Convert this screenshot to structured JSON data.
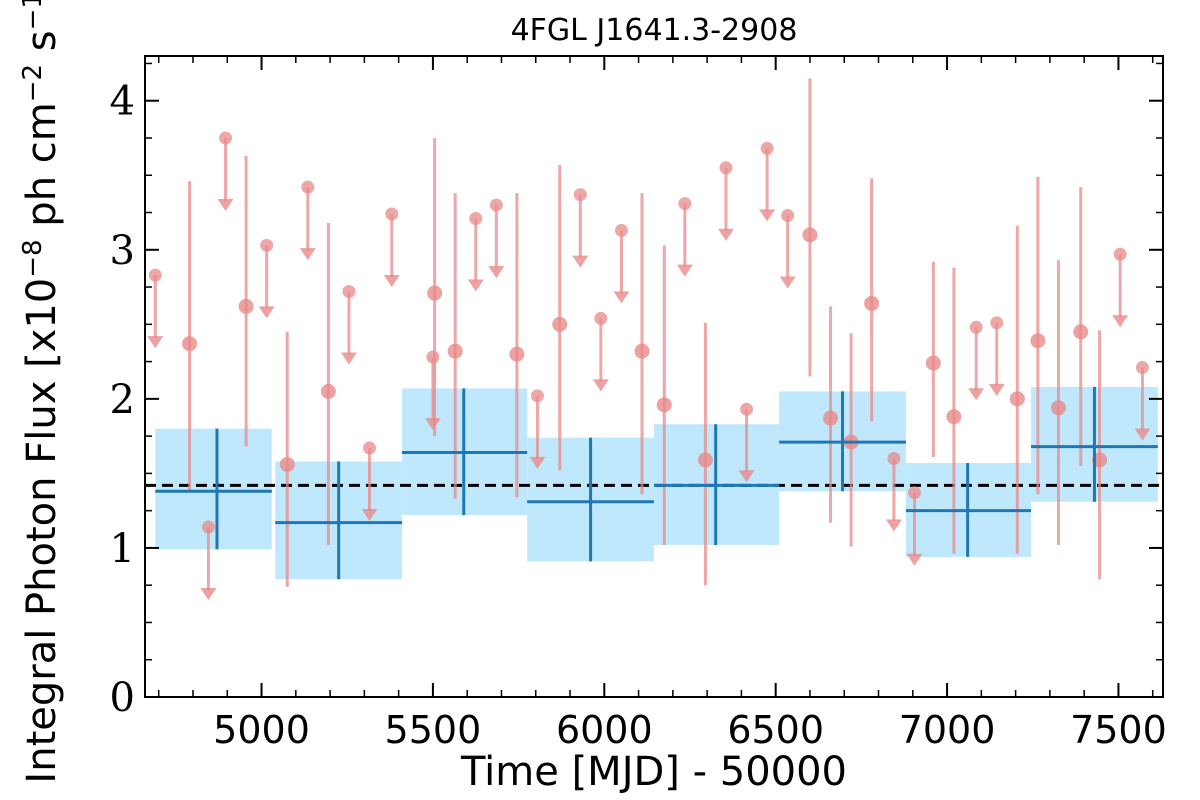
{
  "chart_data": {
    "type": "scatter",
    "title": "4FGL J1641.3-2908",
    "xlabel": "Time [MJD] - 50000",
    "ylabel": "Integral Photon Flux [x10",
    "ylabel_exp1": "−8",
    "ylabel_mid": " ph cm",
    "ylabel_exp2": "−2",
    "ylabel_mid2": " s",
    "ylabel_exp3": "−1",
    "ylabel_end": "]",
    "xlim": [
      4660,
      7630
    ],
    "ylim": [
      0,
      4.3
    ],
    "x_ticks": [
      5000,
      5500,
      6000,
      6500,
      7000,
      7500
    ],
    "y_ticks": [
      0,
      1,
      2,
      3,
      4
    ],
    "x_tick_labels": [
      "5000",
      "5500",
      "6000",
      "6500",
      "7000",
      "7500"
    ],
    "y_tick_labels": [
      "0",
      "1",
      "2",
      "3",
      "4"
    ],
    "mean_flux": 1.42,
    "colors": {
      "points": "#e88a8a",
      "bins_fill": "#bfe8fc",
      "bins_line": "#1f77b4",
      "mean_line": "#000000"
    },
    "series": [
      {
        "role": "short-bin detections",
        "points": [
          {
            "x": 4790,
            "y": 2.37,
            "lo": 1.38,
            "hi": 3.46
          },
          {
            "x": 4955,
            "y": 2.62,
            "lo": 1.68,
            "hi": 3.63
          },
          {
            "x": 5075,
            "y": 1.56,
            "lo": 0.74,
            "hi": 2.45
          },
          {
            "x": 5195,
            "y": 2.05,
            "lo": 1.02,
            "hi": 3.18
          },
          {
            "x": 5505,
            "y": 2.71,
            "lo": 1.75,
            "hi": 3.75
          },
          {
            "x": 5565,
            "y": 2.32,
            "lo": 1.33,
            "hi": 3.38
          },
          {
            "x": 5745,
            "y": 2.3,
            "lo": 1.34,
            "hi": 3.38
          },
          {
            "x": 5870,
            "y": 2.5,
            "lo": 1.52,
            "hi": 3.57
          },
          {
            "x": 6110,
            "y": 2.32,
            "lo": 1.36,
            "hi": 3.38
          },
          {
            "x": 6175,
            "y": 1.96,
            "lo": 1.02,
            "hi": 3.03
          },
          {
            "x": 6295,
            "y": 1.59,
            "lo": 0.75,
            "hi": 2.51
          },
          {
            "x": 6600,
            "y": 3.1,
            "lo": 2.15,
            "hi": 4.15
          },
          {
            "x": 6660,
            "y": 1.87,
            "lo": 1.17,
            "hi": 2.62
          },
          {
            "x": 6720,
            "y": 1.71,
            "lo": 1.01,
            "hi": 2.44
          },
          {
            "x": 6780,
            "y": 2.64,
            "lo": 1.85,
            "hi": 3.48
          },
          {
            "x": 6960,
            "y": 2.24,
            "lo": 1.61,
            "hi": 2.92
          },
          {
            "x": 7020,
            "y": 1.88,
            "lo": 0.96,
            "hi": 2.88
          },
          {
            "x": 7205,
            "y": 2.0,
            "lo": 0.96,
            "hi": 3.16
          },
          {
            "x": 7265,
            "y": 2.39,
            "lo": 1.36,
            "hi": 3.49
          },
          {
            "x": 7325,
            "y": 1.94,
            "lo": 1.02,
            "hi": 2.93
          },
          {
            "x": 7390,
            "y": 2.45,
            "lo": 1.55,
            "hi": 3.42
          },
          {
            "x": 7445,
            "y": 1.59,
            "lo": 0.79,
            "hi": 2.46
          }
        ]
      },
      {
        "role": "short-bin upper limits",
        "points": [
          {
            "x": 4690,
            "y": 2.83
          },
          {
            "x": 4845,
            "y": 1.14
          },
          {
            "x": 4895,
            "y": 3.75
          },
          {
            "x": 5015,
            "y": 3.03
          },
          {
            "x": 5135,
            "y": 3.42
          },
          {
            "x": 5255,
            "y": 2.72
          },
          {
            "x": 5315,
            "y": 1.67
          },
          {
            "x": 5380,
            "y": 3.24
          },
          {
            "x": 5500,
            "y": 2.28
          },
          {
            "x": 5625,
            "y": 3.21
          },
          {
            "x": 5685,
            "y": 3.3
          },
          {
            "x": 5805,
            "y": 2.02
          },
          {
            "x": 5930,
            "y": 3.37
          },
          {
            "x": 5990,
            "y": 2.54
          },
          {
            "x": 6050,
            "y": 3.13
          },
          {
            "x": 6235,
            "y": 3.31
          },
          {
            "x": 6355,
            "y": 3.55
          },
          {
            "x": 6415,
            "y": 1.93
          },
          {
            "x": 6475,
            "y": 3.68
          },
          {
            "x": 6535,
            "y": 3.23
          },
          {
            "x": 6845,
            "y": 1.6
          },
          {
            "x": 6905,
            "y": 1.37
          },
          {
            "x": 7085,
            "y": 2.48
          },
          {
            "x": 7145,
            "y": 2.51
          },
          {
            "x": 7505,
            "y": 2.97
          },
          {
            "x": 7570,
            "y": 2.21
          }
        ]
      },
      {
        "role": "long-bin fluxes",
        "bins": [
          {
            "x0": 4690,
            "x1": 5030,
            "xc": 4870,
            "y": 1.38,
            "lo": 0.99,
            "hi": 1.8
          },
          {
            "x0": 5040,
            "x1": 5410,
            "xc": 5225,
            "y": 1.17,
            "lo": 0.79,
            "hi": 1.58
          },
          {
            "x0": 5410,
            "x1": 5775,
            "xc": 5590,
            "y": 1.64,
            "lo": 1.22,
            "hi": 2.07
          },
          {
            "x0": 5775,
            "x1": 6145,
            "xc": 5960,
            "y": 1.31,
            "lo": 0.91,
            "hi": 1.74
          },
          {
            "x0": 6145,
            "x1": 6510,
            "xc": 6325,
            "y": 1.42,
            "lo": 1.02,
            "hi": 1.83
          },
          {
            "x0": 6510,
            "x1": 6880,
            "xc": 6695,
            "y": 1.71,
            "lo": 1.38,
            "hi": 2.05
          },
          {
            "x0": 6880,
            "x1": 7245,
            "xc": 7060,
            "y": 1.25,
            "lo": 0.94,
            "hi": 1.57
          },
          {
            "x0": 7245,
            "x1": 7615,
            "xc": 7430,
            "y": 1.68,
            "lo": 1.31,
            "hi": 2.08
          }
        ]
      }
    ]
  }
}
